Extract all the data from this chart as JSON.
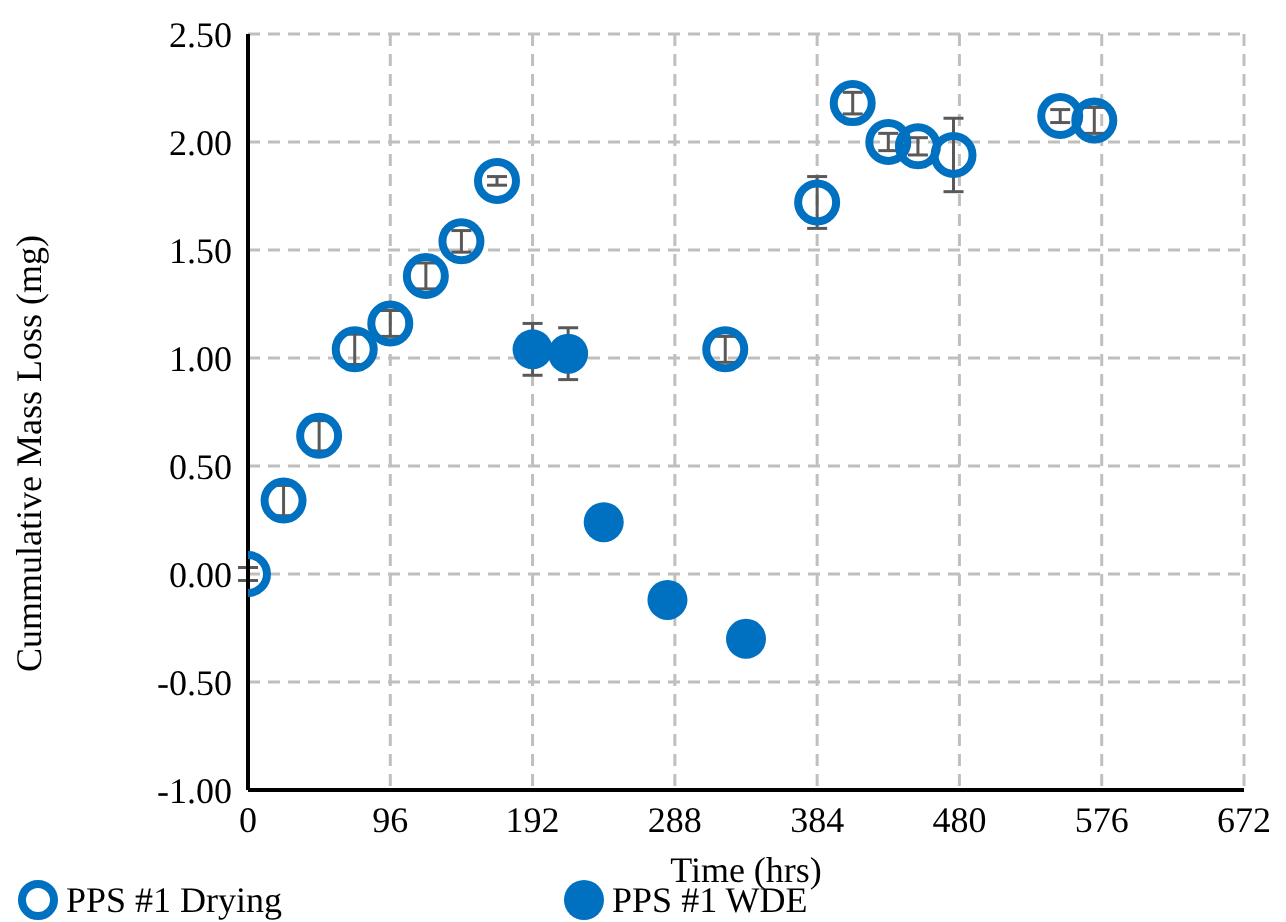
{
  "chart_data": {
    "type": "scatter",
    "xlabel": "Time (hrs)",
    "ylabel": "Cummulative Mass Loss (mg)",
    "xlim": [
      0,
      672
    ],
    "xticks": [
      0,
      96,
      192,
      288,
      384,
      480,
      576,
      672
    ],
    "ylim": [
      -1,
      2.5
    ],
    "yticks": [
      {
        "value": -1,
        "label": "-1.00"
      },
      {
        "value": -0.5,
        "label": "-0.50"
      },
      {
        "value": 0,
        "label": "0.00"
      },
      {
        "value": 0.5,
        "label": "0.50"
      },
      {
        "value": 1,
        "label": "1.00"
      },
      {
        "value": 1.5,
        "label": "1.50"
      },
      {
        "value": 2,
        "label": "2.00"
      },
      {
        "value": 2.5,
        "label": "2.50"
      }
    ],
    "grid": true,
    "legend": "bottom",
    "marker": "circle",
    "series": [
      {
        "name": "PPS #1 Drying",
        "color": "#0070c0",
        "x": [
          0,
          24,
          48,
          72,
          96,
          120,
          144,
          168,
          322,
          384,
          408,
          432,
          452,
          476,
          548,
          571
        ],
        "values": [
          0,
          0.34,
          0.64,
          1.04,
          1.16,
          1.38,
          1.54,
          1.82,
          1.04,
          1.72,
          2.18,
          2.0,
          1.98,
          1.94,
          2.12,
          2.1
        ],
        "errors": [
          0.03,
          0.07,
          0.07,
          0.07,
          0.06,
          0.06,
          0.05,
          0.02,
          0.06,
          0.12,
          0.05,
          0.04,
          0.04,
          0.17,
          0.03,
          0.06
        ]
      },
      {
        "name": "PPS #1 WDE",
        "color": "#0070c0",
        "x": [
          192,
          216,
          240,
          283,
          336
        ],
        "values": [
          1.04,
          1.02,
          0.24,
          -0.12,
          -0.3
        ],
        "errors": [
          0.12,
          0.12,
          null,
          null,
          null
        ]
      }
    ]
  }
}
